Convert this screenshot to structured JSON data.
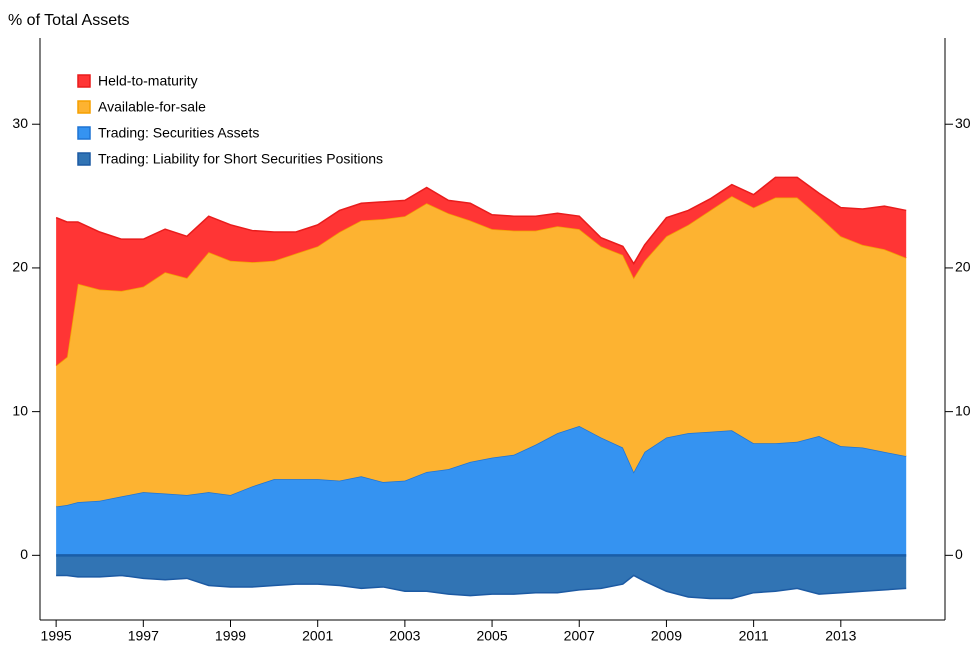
{
  "chart_data": {
    "type": "stacked-area",
    "y_label": "% of Total Assets",
    "x": [
      1995,
      1995.25,
      1995.5,
      1996,
      1996.5,
      1997,
      1997.5,
      1998,
      1998.5,
      1999,
      1999.5,
      2000,
      2000.5,
      2001,
      2001.5,
      2002,
      2002.5,
      2003,
      2003.5,
      2004,
      2004.5,
      2005,
      2005.5,
      2006,
      2006.5,
      2007,
      2007.5,
      2008,
      2008.25,
      2008.5,
      2009,
      2009.5,
      2010,
      2010.5,
      2011,
      2011.5,
      2012,
      2012.5,
      2013,
      2013.5,
      2014,
      2014.5
    ],
    "series": [
      {
        "name": "Held-to-maturity",
        "color": "#ff3535",
        "edge": "#e81c1c",
        "values": [
          10.3,
          9.4,
          4.3,
          4.0,
          3.6,
          3.3,
          3.0,
          2.9,
          2.5,
          2.5,
          2.2,
          2.0,
          1.5,
          1.5,
          1.5,
          1.2,
          1.2,
          1.1,
          1.1,
          0.9,
          1.2,
          1.0,
          1.0,
          1.0,
          0.9,
          0.9,
          0.6,
          0.6,
          1.0,
          1.1,
          1.3,
          1.0,
          0.8,
          0.8,
          0.9,
          1.4,
          1.4,
          1.6,
          2.0,
          2.5,
          3.0,
          3.3
        ]
      },
      {
        "name": "Available-for-sale",
        "color": "#fdb331",
        "edge": "#f5a000",
        "values": [
          9.8,
          10.3,
          15.2,
          14.7,
          14.3,
          14.3,
          15.4,
          15.1,
          16.7,
          16.3,
          15.6,
          15.2,
          15.7,
          16.2,
          17.3,
          17.8,
          18.3,
          18.4,
          18.7,
          17.8,
          16.8,
          15.9,
          15.6,
          14.9,
          14.4,
          13.7,
          13.3,
          13.4,
          13.5,
          13.3,
          14.0,
          14.5,
          15.4,
          16.3,
          16.4,
          17.1,
          17.0,
          15.3,
          14.6,
          14.1,
          14.1,
          13.8
        ]
      },
      {
        "name": "Trading: Securities Assets",
        "color": "#3593f1",
        "edge": "#1f74d4",
        "values": [
          3.4,
          3.5,
          3.7,
          3.8,
          4.1,
          4.4,
          4.3,
          4.2,
          4.4,
          4.2,
          4.8,
          5.3,
          5.3,
          5.3,
          5.2,
          5.5,
          5.1,
          5.2,
          5.8,
          6.0,
          6.5,
          6.8,
          7.0,
          7.7,
          8.5,
          9.0,
          8.2,
          7.5,
          5.8,
          7.2,
          8.2,
          8.5,
          8.6,
          8.7,
          7.8,
          7.8,
          7.9,
          8.3,
          7.6,
          7.5,
          7.2,
          6.9
        ]
      },
      {
        "name": "Trading: Liability for Short Securities Positions",
        "color": "#3174b4",
        "edge": "#1c5aa3",
        "values": [
          -1.4,
          -1.4,
          -1.5,
          -1.5,
          -1.4,
          -1.6,
          -1.7,
          -1.6,
          -2.1,
          -2.2,
          -2.2,
          -2.1,
          -2.0,
          -2.0,
          -2.1,
          -2.3,
          -2.2,
          -2.5,
          -2.5,
          -2.7,
          -2.8,
          -2.7,
          -2.7,
          -2.6,
          -2.6,
          -2.4,
          -2.3,
          -2.0,
          -1.4,
          -1.8,
          -2.5,
          -2.9,
          -3.0,
          -3.0,
          -2.6,
          -2.5,
          -2.3,
          -2.7,
          -2.6,
          -2.5,
          -2.4,
          -2.3
        ]
      }
    ],
    "xlim": [
      1994.63,
      2015.39
    ],
    "xticks": [
      1995,
      1997,
      1999,
      2001,
      2003,
      2005,
      2007,
      2009,
      2011,
      2013
    ],
    "ylim": [
      -4.5,
      36
    ],
    "yticks": [
      0,
      10,
      20,
      30
    ],
    "legend": "top-left"
  }
}
